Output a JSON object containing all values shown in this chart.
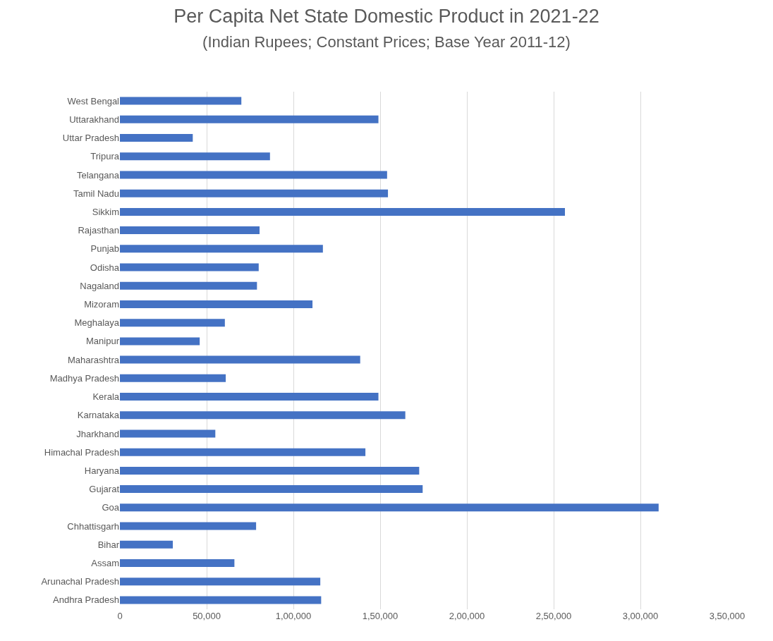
{
  "chart_data": {
    "type": "bar",
    "orientation": "horizontal",
    "title": "Per Capita Net State Domestic Product in 2021-22",
    "subtitle": "(Indian Rupees; Constant Prices; Base Year 2011-12)",
    "categories": [
      "West Bengal",
      "Uttarakhand",
      "Uttar Pradesh",
      "Tripura",
      "Telangana",
      "Tamil Nadu",
      "Sikkim",
      "Rajasthan",
      "Punjab",
      "Odisha",
      "Nagaland",
      "Mizoram",
      "Meghalaya",
      "Manipur",
      "Maharashtra",
      "Madhya Pradesh",
      "Kerala",
      "Karnataka",
      "Jharkhand",
      "Himachal Pradesh",
      "Haryana",
      "Gujarat",
      "Goa",
      "Chhattisgarh",
      "Bihar",
      "Assam",
      "Arunachal Pradesh",
      "Andhra Pradesh"
    ],
    "values": [
      70000,
      149000,
      42000,
      86500,
      154000,
      154500,
      256500,
      80500,
      117000,
      80000,
      79000,
      111000,
      60500,
      46000,
      138500,
      61000,
      149000,
      164500,
      55000,
      141500,
      172500,
      174500,
      310500,
      78500,
      30500,
      66000,
      115500,
      116000
    ],
    "color": "#4472c4",
    "xlim": [
      0,
      350000
    ],
    "xticks": [
      0,
      {
        "value": 50000,
        "label": "50,000"
      },
      {
        "value": 100000,
        "label": "1,00,000"
      },
      {
        "value": 150000,
        "label": "1,50,000"
      },
      {
        "value": 200000,
        "label": "2,00,000"
      },
      {
        "value": 250000,
        "label": "2,50,000"
      },
      {
        "value": 300000,
        "label": "3,00,000"
      },
      {
        "value": 350000,
        "label": "3,50,000"
      }
    ],
    "grid": "x"
  }
}
